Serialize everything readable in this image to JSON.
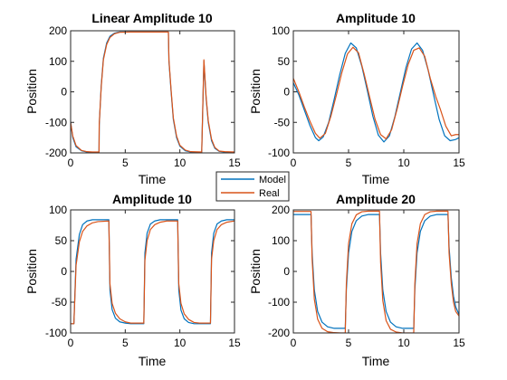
{
  "colors": {
    "model": "#0072BD",
    "real": "#D95319"
  },
  "legend": {
    "entries": [
      "Model",
      "Real"
    ],
    "placement": "center"
  },
  "chart_data": [
    {
      "type": "line",
      "title": "Linear Amplitude 10",
      "xlabel": "Time",
      "ylabel": "Position",
      "xlim": [
        0,
        15
      ],
      "ylim": [
        -200,
        200
      ],
      "xticks": [
        0,
        5,
        10,
        15
      ],
      "yticks": [
        -200,
        -100,
        0,
        100,
        200
      ],
      "series": [
        {
          "name": "Model",
          "x": [
            0,
            0.2,
            0.5,
            1.0,
            1.5,
            2.0,
            2.6,
            2.62,
            2.8,
            3.0,
            3.3,
            3.6,
            4.0,
            4.5,
            5.5,
            8.95,
            9.0,
            9.2,
            9.4,
            9.7,
            10.0,
            10.5,
            11.0,
            12.0,
            12.2,
            12.4,
            12.6,
            12.9,
            13.2,
            13.6,
            14.1,
            15.0
          ],
          "y": [
            -100,
            -150,
            -180,
            -193,
            -197,
            -198,
            -198,
            -110,
            20,
            110,
            160,
            182,
            192,
            196,
            196,
            196,
            100,
            0,
            -90,
            -150,
            -178,
            -193,
            -197,
            -198,
            100,
            -20,
            -100,
            -160,
            -185,
            -195,
            -197,
            -198
          ]
        },
        {
          "name": "Real",
          "x": [
            0,
            0.2,
            0.5,
            1.0,
            1.5,
            2.0,
            2.6,
            2.62,
            2.8,
            3.0,
            3.3,
            3.6,
            4.0,
            4.5,
            5.5,
            8.95,
            9.0,
            9.2,
            9.4,
            9.7,
            10.0,
            10.5,
            11.0,
            12.0,
            12.2,
            12.4,
            12.6,
            12.9,
            13.2,
            13.6,
            14.1,
            15.0
          ],
          "y": [
            -100,
            -145,
            -176,
            -192,
            -196,
            -197,
            -197,
            -105,
            15,
            105,
            155,
            178,
            190,
            195,
            196,
            196,
            105,
            5,
            -85,
            -145,
            -175,
            -191,
            -196,
            -197,
            105,
            -15,
            -95,
            -155,
            -182,
            -194,
            -196,
            -197
          ]
        }
      ]
    },
    {
      "type": "line",
      "title": "Amplitude 10",
      "xlabel": "Time",
      "ylabel": "Position",
      "xlim": [
        0,
        15
      ],
      "ylim": [
        -100,
        100
      ],
      "xticks": [
        0,
        5,
        10,
        15
      ],
      "yticks": [
        -100,
        -50,
        0,
        50,
        100
      ],
      "series": [
        {
          "name": "Model",
          "x": [
            0,
            0.5,
            1.0,
            1.5,
            2.0,
            2.3,
            2.7,
            3.2,
            3.7,
            4.2,
            4.7,
            5.2,
            5.7,
            6.2,
            6.7,
            7.2,
            7.7,
            8.2,
            8.7,
            9.2,
            9.7,
            10.2,
            10.7,
            11.2,
            11.7,
            12.2,
            12.7,
            13.2,
            13.7,
            14.2,
            14.7,
            15.0
          ],
          "y": [
            15,
            -5,
            -30,
            -55,
            -75,
            -80,
            -74,
            -50,
            -12,
            28,
            63,
            80,
            72,
            42,
            2,
            -40,
            -71,
            -82,
            -72,
            -40,
            0,
            40,
            70,
            80,
            68,
            36,
            -5,
            -45,
            -72,
            -80,
            -78,
            -75
          ]
        },
        {
          "name": "Real",
          "x": [
            0,
            0.5,
            1.0,
            1.5,
            2.0,
            2.4,
            2.9,
            3.4,
            3.9,
            4.4,
            4.9,
            5.4,
            5.9,
            6.4,
            6.9,
            7.4,
            7.9,
            8.4,
            8.9,
            9.4,
            9.9,
            10.4,
            10.9,
            11.4,
            11.9,
            12.4,
            12.9,
            13.3,
            13.8,
            14.3,
            14.7,
            15.0
          ],
          "y": [
            22,
            0,
            -25,
            -48,
            -68,
            -76,
            -68,
            -40,
            -5,
            32,
            62,
            73,
            64,
            30,
            -8,
            -45,
            -70,
            -77,
            -62,
            -28,
            10,
            45,
            68,
            72,
            58,
            22,
            -8,
            -28,
            -56,
            -72,
            -70,
            -70
          ]
        }
      ]
    },
    {
      "type": "line",
      "title": "Amplitude 10",
      "xlabel": "Time",
      "ylabel": "Position",
      "xlim": [
        0,
        15
      ],
      "ylim": [
        -100,
        100
      ],
      "xticks": [
        0,
        5,
        10,
        15
      ],
      "yticks": [
        -100,
        -50,
        0,
        50,
        100
      ],
      "series": [
        {
          "name": "Model",
          "x": [
            0,
            0.3,
            0.5,
            0.8,
            1.1,
            1.5,
            2.0,
            3.5,
            3.6,
            3.8,
            4.1,
            4.5,
            5.0,
            5.5,
            6.7,
            6.8,
            7.0,
            7.3,
            7.7,
            8.2,
            9.8,
            9.9,
            10.1,
            10.4,
            10.8,
            11.3,
            12.8,
            12.9,
            13.1,
            13.4,
            13.8,
            14.3,
            15.0
          ],
          "y": [
            -85,
            -85,
            20,
            60,
            76,
            82,
            84,
            84,
            -30,
            -62,
            -76,
            -82,
            -84,
            -85,
            -85,
            30,
            62,
            77,
            82,
            84,
            84,
            -30,
            -63,
            -77,
            -83,
            -85,
            -85,
            30,
            62,
            77,
            82,
            84,
            84
          ]
        },
        {
          "name": "Real",
          "x": [
            0,
            0.3,
            0.5,
            0.8,
            1.1,
            1.5,
            2.0,
            2.5,
            3.5,
            3.6,
            3.8,
            4.1,
            4.5,
            5.0,
            5.5,
            6.7,
            6.8,
            7.0,
            7.3,
            7.7,
            8.2,
            8.8,
            9.8,
            9.9,
            10.1,
            10.4,
            10.8,
            11.3,
            11.8,
            12.8,
            12.9,
            13.1,
            13.4,
            13.8,
            14.3,
            15.0
          ],
          "y": [
            -85,
            -85,
            10,
            48,
            65,
            74,
            79,
            81,
            82,
            -20,
            -52,
            -68,
            -77,
            -82,
            -84,
            -84,
            18,
            50,
            68,
            76,
            80,
            82,
            82,
            -20,
            -52,
            -69,
            -78,
            -83,
            -84,
            -84,
            20,
            50,
            68,
            76,
            80,
            82
          ]
        }
      ]
    },
    {
      "type": "line",
      "title": "Amplitude 20",
      "xlabel": "Time",
      "ylabel": "Position",
      "xlim": [
        0,
        15
      ],
      "ylim": [
        -200,
        200
      ],
      "xticks": [
        0,
        5,
        10,
        15
      ],
      "yticks": [
        -200,
        -100,
        0,
        100,
        200
      ],
      "series": [
        {
          "name": "Model",
          "x": [
            0,
            1.6,
            1.7,
            1.9,
            2.2,
            2.6,
            3.1,
            3.7,
            4.7,
            4.8,
            5.0,
            5.3,
            5.7,
            6.2,
            6.8,
            7.8,
            7.9,
            8.1,
            8.4,
            8.8,
            9.3,
            9.9,
            10.9,
            11.0,
            11.2,
            11.5,
            11.9,
            12.4,
            13.0,
            14.0,
            14.1,
            14.3,
            14.5,
            14.7,
            15.0
          ],
          "y": [
            185,
            185,
            60,
            -60,
            -130,
            -165,
            -180,
            -185,
            -185,
            -60,
            60,
            130,
            165,
            180,
            185,
            185,
            60,
            -60,
            -130,
            -165,
            -180,
            -185,
            -185,
            -60,
            60,
            130,
            165,
            180,
            185,
            185,
            80,
            -20,
            -80,
            -115,
            -140
          ]
        },
        {
          "name": "Real",
          "x": [
            0,
            1.6,
            1.7,
            1.9,
            2.2,
            2.6,
            3.1,
            3.7,
            4.3,
            4.7,
            4.8,
            5.0,
            5.3,
            5.7,
            6.2,
            6.8,
            7.8,
            7.9,
            8.1,
            8.4,
            8.8,
            9.3,
            9.9,
            10.9,
            11.0,
            11.2,
            11.5,
            11.9,
            12.4,
            13.0,
            14.0,
            14.1,
            14.3,
            14.5,
            14.7,
            15.0
          ],
          "y": [
            195,
            195,
            40,
            -90,
            -155,
            -185,
            -196,
            -199,
            -200,
            -200,
            -40,
            90,
            155,
            184,
            194,
            196,
            196,
            30,
            -95,
            -160,
            -188,
            -197,
            -200,
            -200,
            -40,
            90,
            155,
            185,
            194,
            196,
            196,
            60,
            -40,
            -100,
            -130,
            -145
          ]
        }
      ]
    }
  ]
}
